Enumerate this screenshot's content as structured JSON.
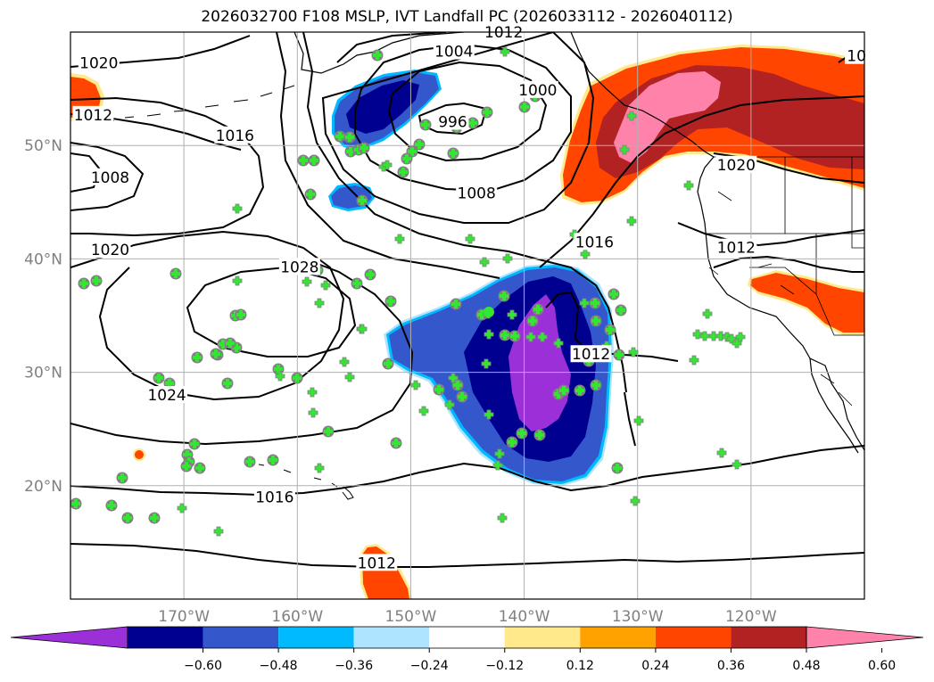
{
  "title": "2026032700 F108 MSLP, IVT Landfall PC (2026033112 - 2026040112)",
  "map": {
    "lon_range": [
      -180,
      -110
    ],
    "lat_range": [
      10,
      60
    ],
    "lat_labels": [
      {
        "lat": 50,
        "text": "50°N"
      },
      {
        "lat": 40,
        "text": "40°N"
      },
      {
        "lat": 30,
        "text": "30°N"
      },
      {
        "lat": 20,
        "text": "20°N"
      }
    ],
    "lon_labels": [
      {
        "lon": -170,
        "text": "170°W"
      },
      {
        "lon": -160,
        "text": "160°W"
      },
      {
        "lon": -150,
        "text": "150°W"
      },
      {
        "lon": -140,
        "text": "140°W"
      },
      {
        "lon": -130,
        "text": "130°W"
      },
      {
        "lon": -120,
        "text": "120°W"
      }
    ]
  },
  "isobar_labels": [
    {
      "text": "1020",
      "lon": -177.5,
      "lat": 57.3
    },
    {
      "text": "1012",
      "lon": -178.0,
      "lat": 52.7
    },
    {
      "text": "1016",
      "lon": -165.5,
      "lat": 50.9
    },
    {
      "text": "1008",
      "lon": -176.5,
      "lat": 47.2
    },
    {
      "text": "1004",
      "lon": -146.2,
      "lat": 58.3
    },
    {
      "text": "1012",
      "lon": -141.8,
      "lat": 60.0
    },
    {
      "text": "1000",
      "lon": -138.8,
      "lat": 54.9
    },
    {
      "text": "996",
      "lon": -146.3,
      "lat": 52.1
    },
    {
      "text": "1008",
      "lon": -144.2,
      "lat": 45.8
    },
    {
      "text": "1016",
      "lon": -133.8,
      "lat": 41.5
    },
    {
      "text": "1020",
      "lon": -176.5,
      "lat": 40.8
    },
    {
      "text": "1028",
      "lon": -159.8,
      "lat": 39.3
    },
    {
      "text": "1012",
      "lon": -121.3,
      "lat": 41.0
    },
    {
      "text": "1020",
      "lon": -121.3,
      "lat": 48.3
    },
    {
      "text": "1012",
      "lon": -134.1,
      "lat": 31.6
    },
    {
      "text": "1024",
      "lon": -171.5,
      "lat": 28.0
    },
    {
      "text": "1016",
      "lon": -162.0,
      "lat": 19.0
    },
    {
      "text": "1012",
      "lon": -153.0,
      "lat": 13.2
    },
    {
      "text": "10",
      "lon": -110.7,
      "lat": 57.9
    }
  ],
  "colorbar": {
    "colors": [
      "#9b30d9",
      "#000090",
      "#3458cc",
      "#00baff",
      "#aee4ff",
      "#ffffff",
      "#ffe98a",
      "#ffa200",
      "#ff4500",
      "#b22222",
      "#ff82ab"
    ],
    "ticks": [
      {
        "value": -0.6,
        "text": "−0.60"
      },
      {
        "value": -0.48,
        "text": "−0.48"
      },
      {
        "value": -0.36,
        "text": "−0.36"
      },
      {
        "value": -0.24,
        "text": "−0.24"
      },
      {
        "value": -0.12,
        "text": "−0.12"
      },
      {
        "value": 0.12,
        "text": "0.12"
      },
      {
        "value": 0.24,
        "text": "0.24"
      },
      {
        "value": 0.36,
        "text": "0.36"
      },
      {
        "value": 0.48,
        "text": "0.48"
      },
      {
        "value": 0.6,
        "text": "0.60"
      }
    ]
  },
  "marker_colors": {
    "cross": "#32e632",
    "ring": "#808080"
  }
}
